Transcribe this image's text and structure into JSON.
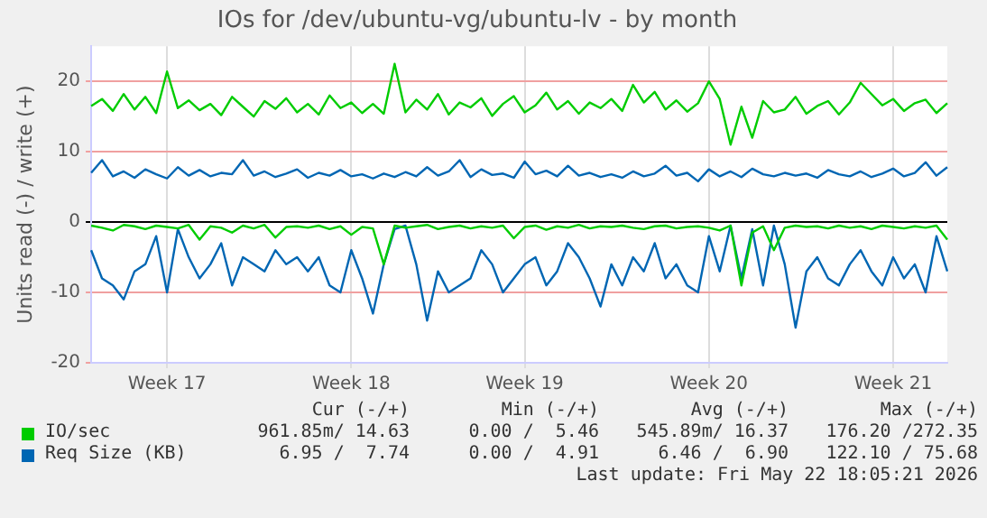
{
  "chart_data": {
    "type": "line",
    "title": "IOs for /dev/ubuntu-vg/ubuntu-lv - by month",
    "ylabel": "Units read (-) / write (+)",
    "categories": [
      null,
      null,
      null,
      null,
      null,
      null,
      null,
      "Week 17",
      null,
      null,
      null,
      null,
      null,
      null,
      null,
      null,
      null,
      null,
      null,
      null,
      null,
      null,
      null,
      null,
      "Week 18",
      null,
      null,
      null,
      null,
      null,
      null,
      null,
      null,
      null,
      null,
      null,
      null,
      null,
      null,
      null,
      "Week 19",
      null,
      null,
      null,
      null,
      null,
      null,
      null,
      null,
      null,
      null,
      null,
      null,
      null,
      null,
      null,
      null,
      "Week 20",
      null,
      null,
      null,
      null,
      null,
      null,
      null,
      null,
      null,
      null,
      null,
      null,
      null,
      null,
      null,
      null,
      "Week 21",
      null,
      null,
      null,
      null,
      null
    ],
    "series": [
      {
        "name": "IO/sec",
        "color": "#00cc00",
        "values": [
          16.5,
          17.5,
          15.8,
          18.2,
          16.0,
          17.8,
          15.5,
          21.4,
          16.2,
          17.3,
          15.9,
          16.8,
          15.2,
          17.8,
          16.4,
          15.0,
          17.2,
          16.1,
          17.6,
          15.6,
          16.8,
          15.3,
          18.0,
          16.2,
          17.0,
          15.5,
          16.8,
          15.4,
          22.5,
          15.6,
          17.4,
          16.0,
          18.2,
          15.3,
          17.0,
          16.3,
          17.6,
          15.1,
          16.8,
          17.9,
          15.6,
          16.6,
          18.4,
          16.0,
          17.2,
          15.4,
          17.0,
          16.2,
          17.5,
          15.8,
          19.5,
          17.0,
          18.5,
          16.0,
          17.3,
          15.7,
          16.9,
          20.0,
          17.5,
          11.0,
          16.4,
          12.0,
          17.2,
          15.6,
          16.0,
          17.8,
          15.4,
          16.5,
          17.2,
          15.3,
          17.0,
          19.8,
          18.2,
          16.6,
          17.5,
          15.8,
          16.9,
          17.4,
          15.5,
          16.9
        ]
      },
      {
        "color": "#00cc00",
        "values": [
          -0.5,
          -0.8,
          -1.2,
          -0.4,
          -0.6,
          -1.0,
          -0.5,
          -0.7,
          -0.9,
          -0.4,
          -2.5,
          -0.6,
          -0.8,
          -1.5,
          -0.5,
          -0.9,
          -0.4,
          -2.2,
          -0.7,
          -0.6,
          -0.8,
          -0.5,
          -1.0,
          -0.6,
          -1.8,
          -0.7,
          -0.9,
          -6.0,
          -0.5,
          -0.8,
          -0.6,
          -0.4,
          -1.0,
          -0.7,
          -0.5,
          -0.9,
          -0.6,
          -0.8,
          -0.5,
          -2.3,
          -0.7,
          -0.5,
          -1.1,
          -0.6,
          -0.8,
          -0.4,
          -0.9,
          -0.6,
          -0.7,
          -0.5,
          -0.8,
          -1.0,
          -0.6,
          -0.5,
          -0.9,
          -0.7,
          -0.6,
          -0.8,
          -1.2,
          -0.5,
          -9.0,
          -1.5,
          -0.6,
          -4.0,
          -0.8,
          -0.5,
          -0.7,
          -0.6,
          -0.9,
          -0.5,
          -0.8,
          -0.6,
          -1.0,
          -0.5,
          -0.7,
          -0.9,
          -0.6,
          -0.8,
          -0.5,
          -2.5
        ]
      },
      {
        "name": "Req Size (KB)",
        "color": "#0066b3",
        "values": [
          7.0,
          8.8,
          6.5,
          7.2,
          6.3,
          7.5,
          6.8,
          6.2,
          7.8,
          6.6,
          7.4,
          6.5,
          7.0,
          6.8,
          8.8,
          6.6,
          7.2,
          6.4,
          6.9,
          7.5,
          6.3,
          7.0,
          6.6,
          7.4,
          6.5,
          6.8,
          6.2,
          6.9,
          6.4,
          7.1,
          6.5,
          7.8,
          6.6,
          7.2,
          8.8,
          6.4,
          7.5,
          6.7,
          6.9,
          6.3,
          8.6,
          6.8,
          7.3,
          6.5,
          8.0,
          6.6,
          7.0,
          6.4,
          6.8,
          6.3,
          7.2,
          6.5,
          6.9,
          8.0,
          6.6,
          7.0,
          5.8,
          7.5,
          6.5,
          7.2,
          6.4,
          7.6,
          6.8,
          6.5,
          7.0,
          6.6,
          6.9,
          6.3,
          7.4,
          6.8,
          6.5,
          7.2,
          6.4,
          6.9,
          7.6,
          6.5,
          7.0,
          8.5,
          6.6,
          7.8
        ]
      },
      {
        "color": "#0066b3",
        "values": [
          -4,
          -8,
          -9,
          -11,
          -7,
          -6,
          -2,
          -10,
          -1,
          -5,
          -8,
          -6,
          -3,
          -9,
          -5,
          -6,
          -7,
          -4,
          -6,
          -5,
          -7,
          -5,
          -9,
          -10,
          -4,
          -8,
          -13,
          -6,
          -1,
          -0.5,
          -6,
          -14,
          -7,
          -10,
          -9,
          -8,
          -4,
          -6,
          -10,
          -8,
          -6,
          -5,
          -9,
          -7,
          -3,
          -5,
          -8,
          -12,
          -6,
          -9,
          -5,
          -7,
          -3,
          -8,
          -6,
          -9,
          -10,
          -2,
          -7,
          -0.5,
          -8,
          -1,
          -9,
          -0.5,
          -6,
          -15,
          -7,
          -5,
          -8,
          -9,
          -6,
          -4,
          -7,
          -9,
          -5,
          -8,
          -6,
          -10,
          -2,
          -7
        ]
      }
    ],
    "ylim": [
      -20,
      25
    ],
    "yticks": [
      -20,
      -10,
      0,
      10,
      20
    ],
    "grid": true,
    "legend": "bottom",
    "marker": "none",
    "line_style": "solid",
    "annotations": [
      "Cur (-/+)",
      "Min (-/+)",
      "Avg (-/+)",
      "Max (-/+)",
      "961.85m/ 14.63",
      "0.00 /  5.46",
      "545.89m/ 16.37",
      "176.20 /272.35",
      "6.95 /  7.74",
      "0.00 /  4.91",
      "6.46 /  6.90",
      "122.10 / 75.68",
      "Last update: Fri May 22 18:05:21 2026"
    ]
  }
}
